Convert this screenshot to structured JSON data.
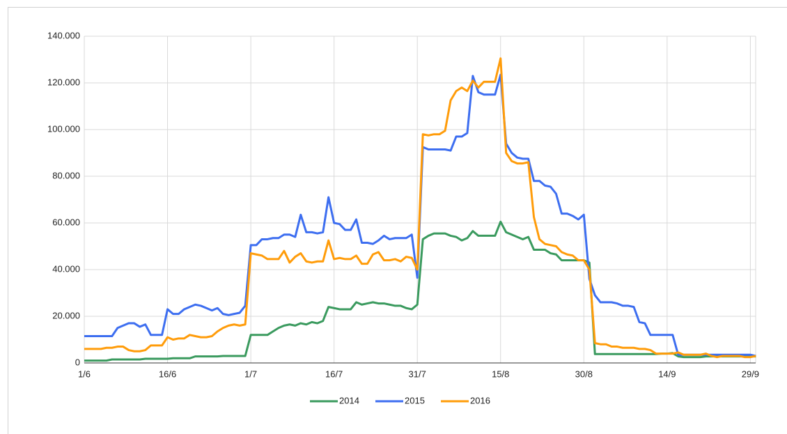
{
  "chart_data": {
    "type": "line",
    "categories": [
      "1/6",
      null,
      null,
      null,
      null,
      null,
      null,
      null,
      null,
      null,
      null,
      null,
      null,
      null,
      null,
      "16/6",
      null,
      null,
      null,
      null,
      null,
      null,
      null,
      null,
      null,
      null,
      null,
      null,
      null,
      null,
      "1/7",
      null,
      null,
      null,
      null,
      null,
      null,
      null,
      null,
      null,
      null,
      null,
      null,
      null,
      null,
      "16/7",
      null,
      null,
      null,
      null,
      null,
      null,
      null,
      null,
      null,
      null,
      null,
      null,
      null,
      null,
      "31/7",
      null,
      null,
      null,
      null,
      null,
      null,
      null,
      null,
      null,
      null,
      null,
      null,
      null,
      null,
      "15/8",
      null,
      null,
      null,
      null,
      null,
      null,
      null,
      null,
      null,
      null,
      null,
      null,
      null,
      null,
      "30/8",
      null,
      null,
      null,
      null,
      null,
      null,
      null,
      null,
      null,
      null,
      null,
      null,
      null,
      null,
      "14/9",
      null,
      null,
      null,
      null,
      null,
      null,
      null,
      null,
      null,
      null,
      null,
      null,
      null,
      null,
      "29/9",
      null
    ],
    "series": [
      {
        "name": "2014",
        "color": "#3a9a5e",
        "values": [
          1000,
          1000,
          1000,
          1000,
          1000,
          1500,
          1500,
          1500,
          1500,
          1500,
          1500,
          1800,
          1800,
          1800,
          1800,
          1800,
          2000,
          2000,
          2000,
          2000,
          2800,
          2800,
          2800,
          2800,
          2800,
          3000,
          3000,
          3000,
          3000,
          3000,
          12000,
          12000,
          12000,
          12000,
          13500,
          15000,
          16000,
          16500,
          16000,
          17000,
          16500,
          17500,
          17000,
          18000,
          24000,
          23500,
          23000,
          23000,
          23000,
          26000,
          25000,
          25500,
          26000,
          25500,
          25500,
          25000,
          24500,
          24500,
          23500,
          23000,
          25000,
          53000,
          54500,
          55500,
          55500,
          55500,
          54500,
          54000,
          52500,
          53500,
          56500,
          54500,
          54500,
          54500,
          54500,
          60500,
          56000,
          55000,
          54000,
          53000,
          54000,
          48500,
          48500,
          48500,
          47000,
          46500,
          44000,
          44000,
          44000,
          44000,
          44000,
          43000,
          3800,
          3800,
          3800,
          3800,
          3800,
          3800,
          3800,
          3800,
          3800,
          3800,
          3800,
          3800,
          4000,
          4000,
          4200,
          2800,
          2500,
          2500,
          2500,
          2500,
          2800,
          2800,
          2800,
          2800,
          2800,
          2800,
          2800,
          2800,
          2800,
          2800
        ]
      },
      {
        "name": "2015",
        "color": "#3d6ef0",
        "values": [
          11500,
          11500,
          11500,
          11500,
          11500,
          11500,
          15000,
          16000,
          17000,
          17000,
          15500,
          16500,
          12000,
          12000,
          12000,
          23000,
          21000,
          21000,
          23000,
          24000,
          25000,
          24500,
          23500,
          22500,
          23500,
          21000,
          20500,
          21000,
          21500,
          24500,
          50500,
          50500,
          53000,
          53000,
          53500,
          53500,
          55000,
          55000,
          54000,
          63500,
          56000,
          56000,
          55500,
          56000,
          71000,
          60000,
          59500,
          57000,
          57000,
          61500,
          51500,
          51500,
          51000,
          52500,
          54500,
          53000,
          53500,
          53500,
          53500,
          55000,
          36500,
          92500,
          91500,
          91500,
          91500,
          91500,
          91000,
          97000,
          97000,
          98500,
          123000,
          116000,
          115000,
          115000,
          115000,
          123500,
          94000,
          90000,
          88000,
          87500,
          87500,
          78000,
          78000,
          76000,
          75500,
          72500,
          64000,
          64000,
          63000,
          61500,
          63500,
          36000,
          29000,
          26000,
          26000,
          26000,
          25500,
          24500,
          24500,
          24000,
          17500,
          17000,
          12000,
          12000,
          12000,
          12000,
          12000,
          3500,
          3500,
          3500,
          3500,
          3500,
          3500,
          3500,
          3500,
          3500,
          3500,
          3500,
          3500,
          3500,
          3500,
          3000
        ]
      },
      {
        "name": "2016",
        "color": "#ff9c0a",
        "values": [
          6000,
          6000,
          6000,
          6000,
          6500,
          6500,
          7000,
          7000,
          5500,
          5000,
          5000,
          5500,
          7500,
          7500,
          7500,
          11000,
          10000,
          10500,
          10500,
          12000,
          11500,
          11000,
          11000,
          11500,
          13500,
          15000,
          16000,
          16500,
          16000,
          16500,
          47000,
          46500,
          46000,
          44500,
          44500,
          44500,
          48000,
          43000,
          45500,
          47000,
          43500,
          43000,
          43500,
          43500,
          52500,
          44500,
          45000,
          44500,
          44500,
          46000,
          42500,
          42500,
          46500,
          47500,
          44000,
          44000,
          44500,
          43500,
          45500,
          45000,
          40000,
          98000,
          97500,
          98000,
          98000,
          99500,
          112500,
          116500,
          118000,
          116500,
          121000,
          118000,
          120500,
          120500,
          120500,
          130500,
          90000,
          86500,
          85500,
          85500,
          86000,
          62500,
          53000,
          51000,
          50500,
          50000,
          47500,
          46500,
          46000,
          44000,
          44000,
          40000,
          8500,
          8000,
          8000,
          7000,
          7000,
          6500,
          6500,
          6500,
          6000,
          6000,
          5500,
          4000,
          4000,
          4000,
          4000,
          4500,
          3500,
          3500,
          3500,
          3500,
          4000,
          3000,
          2500,
          3000,
          3000,
          3000,
          3000,
          2500,
          2500,
          3000
        ]
      }
    ],
    "ylim": [
      0,
      140000
    ],
    "yticks": [
      0,
      {
        "value": 20000,
        "label": "20.000"
      },
      {
        "value": 40000,
        "label": "40.000"
      },
      {
        "value": 60000,
        "label": "60.000"
      },
      {
        "value": 80000,
        "label": "80.000"
      },
      {
        "value": 100000,
        "label": "100.000"
      },
      {
        "value": 120000,
        "label": "120.000"
      },
      {
        "value": 140000,
        "label": "140.000"
      }
    ],
    "grid": true,
    "legend": "bottom"
  }
}
